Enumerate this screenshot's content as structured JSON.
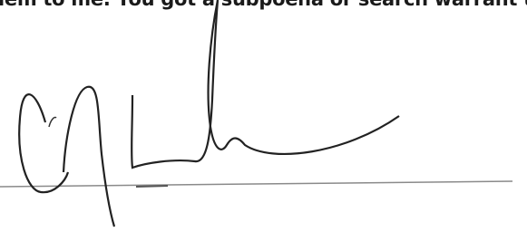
{
  "document": {
    "text_line": "lem to me. You got a subpoena or search warrant to"
  }
}
